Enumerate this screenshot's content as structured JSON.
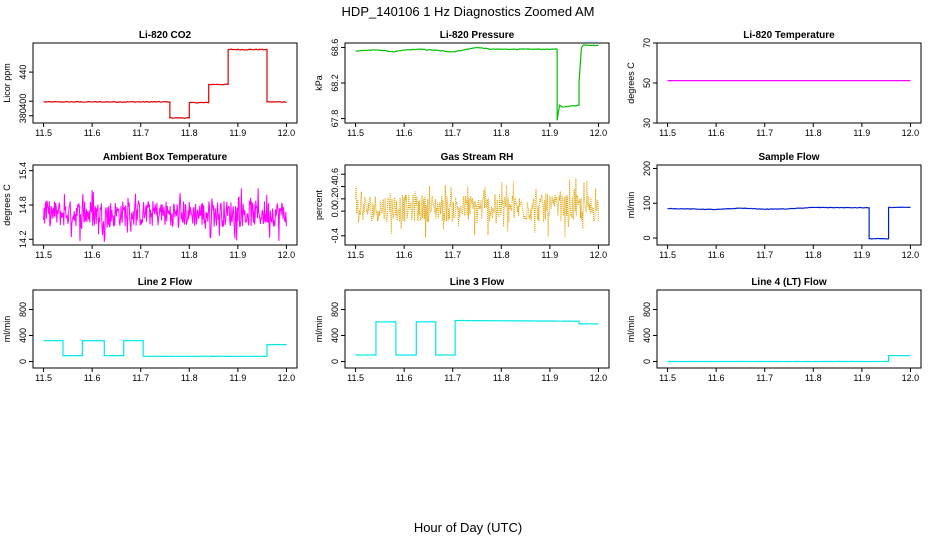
{
  "figure": {
    "title": "HDP_140106  1 Hz Diagnostics Zoomed AM",
    "xlabel": "Hour of Day (UTC)"
  },
  "chart_data": [
    {
      "type": "line",
      "title": "Li-820 CO2",
      "ylabel": "Licor ppm",
      "color": "#e00000",
      "xlim": [
        11.5,
        12.0
      ],
      "xticks": [
        "11.5",
        "11.6",
        "11.7",
        "11.8",
        "11.9",
        "12.0"
      ],
      "ylim": [
        370,
        480
      ],
      "yticks": [
        "380",
        "400",
        "440"
      ],
      "noise": 1.2,
      "series": [
        {
          "x": [
            11.5,
            11.76,
            11.76,
            11.8,
            11.8,
            11.84,
            11.84,
            11.88,
            11.88,
            11.96,
            11.96,
            12.0
          ],
          "y": [
            399,
            399,
            377,
            377,
            398,
            398,
            423,
            423,
            471,
            471,
            399,
            399
          ]
        }
      ]
    },
    {
      "type": "line",
      "title": "Li-820 Pressure",
      "ylabel": "kPa",
      "color": "#00c000",
      "xlim": [
        11.5,
        12.0
      ],
      "xticks": [
        "11.5",
        "11.6",
        "11.7",
        "11.8",
        "11.9",
        "12.0"
      ],
      "ylim": [
        67.75,
        68.65
      ],
      "yticks": [
        "67.8",
        "68.2",
        "68.6"
      ],
      "noise": 0.008,
      "series": [
        {
          "x": [
            11.5,
            11.53,
            11.55,
            11.58,
            11.6,
            11.63,
            11.66,
            11.7,
            11.72,
            11.75,
            11.78,
            11.82,
            11.86,
            11.9,
            11.915,
            11.915,
            11.92,
            11.925,
            11.96,
            11.96,
            11.965,
            11.97,
            12.0
          ],
          "y": [
            68.56,
            68.57,
            68.57,
            68.55,
            68.57,
            68.58,
            68.57,
            68.55,
            68.57,
            68.6,
            68.58,
            68.58,
            68.58,
            68.58,
            68.58,
            67.78,
            67.95,
            67.93,
            67.95,
            68.2,
            68.6,
            68.63,
            68.62
          ]
        }
      ]
    },
    {
      "type": "line",
      "title": "Li-820 Temperature",
      "ylabel": "degrees C",
      "color": "#ff00ff",
      "xlim": [
        11.5,
        12.0
      ],
      "xticks": [
        "11.5",
        "11.6",
        "11.7",
        "11.8",
        "11.9",
        "12.0"
      ],
      "ylim": [
        30,
        70
      ],
      "yticks": [
        "30",
        "50",
        "70"
      ],
      "noise": 0,
      "series": [
        {
          "x": [
            11.5,
            12.0
          ],
          "y": [
            51.2,
            51.2
          ]
        }
      ]
    },
    {
      "type": "line",
      "title": "Ambient Box Temperature",
      "ylabel": "degrees C",
      "color": "#ff00ff",
      "xlim": [
        11.5,
        12.0
      ],
      "xticks": [
        "11.5",
        "11.6",
        "11.7",
        "11.8",
        "11.9",
        "12.0"
      ],
      "ylim": [
        14.1,
        15.5
      ],
      "yticks": [
        "14.2",
        "14.8",
        "15.4"
      ],
      "noise": 0.33,
      "noise_type": "dense",
      "series": [
        {
          "x": [
            11.5,
            12.0
          ],
          "y": [
            14.65,
            14.65
          ]
        }
      ]
    },
    {
      "type": "line",
      "title": "Gas Stream RH",
      "ylabel": "percent",
      "color": "#e0a000",
      "xlim": [
        11.5,
        12.0
      ],
      "xticks": [
        "11.5",
        "11.6",
        "11.7",
        "11.8",
        "11.9",
        "12.0"
      ],
      "ylim": [
        -0.55,
        0.75
      ],
      "yticks": [
        "-0.4",
        "0.0",
        "0.2",
        "0.4",
        "0.6"
      ],
      "noise": 0.32,
      "noise_type": "dense",
      "dotted": true,
      "series": [
        {
          "x": [
            11.5,
            12.0
          ],
          "y": [
            0.05,
            0.05
          ]
        }
      ]
    },
    {
      "type": "line",
      "title": "Sample Flow",
      "ylabel": "ml/min",
      "color": "#0020d0",
      "xlim": [
        11.5,
        12.0
      ],
      "xticks": [
        "11.5",
        "11.6",
        "11.7",
        "11.8",
        "11.9",
        "12.0"
      ],
      "ylim": [
        -20,
        210
      ],
      "yticks": [
        "0",
        "100",
        "200"
      ],
      "noise": 1.5,
      "series": [
        {
          "x": [
            11.5,
            11.6,
            11.65,
            11.7,
            11.75,
            11.8,
            11.915,
            11.915,
            11.955,
            11.955,
            12.0
          ],
          "y": [
            85,
            82,
            86,
            83,
            84,
            88,
            87,
            -2,
            -2,
            88,
            88
          ]
        }
      ]
    },
    {
      "type": "line",
      "title": "Line 2 Flow",
      "ylabel": "ml/min",
      "color": "#00e8e8",
      "xlim": [
        11.5,
        12.0
      ],
      "xticks": [
        "11.5",
        "11.6",
        "11.7",
        "11.8",
        "11.9",
        "12.0"
      ],
      "ylim": [
        -100,
        1100
      ],
      "yticks": [
        "0",
        "400",
        "800"
      ],
      "noise": 4,
      "series": [
        {
          "x": [
            11.5,
            11.54,
            11.54,
            11.58,
            11.58,
            11.625,
            11.625,
            11.665,
            11.665,
            11.705,
            11.705,
            11.96,
            11.96,
            12.0
          ],
          "y": [
            320,
            320,
            90,
            90,
            320,
            320,
            90,
            90,
            320,
            320,
            80,
            80,
            260,
            260
          ]
        }
      ]
    },
    {
      "type": "line",
      "title": "Line 3 Flow",
      "ylabel": "ml/min",
      "color": "#00e8e8",
      "xlim": [
        11.5,
        12.0
      ],
      "xticks": [
        "11.5",
        "11.6",
        "11.7",
        "11.8",
        "11.9",
        "12.0"
      ],
      "ylim": [
        -100,
        1100
      ],
      "yticks": [
        "0",
        "400",
        "800"
      ],
      "noise": 4,
      "series": [
        {
          "x": [
            11.5,
            11.542,
            11.542,
            11.583,
            11.583,
            11.625,
            11.625,
            11.665,
            11.665,
            11.705,
            11.705,
            11.96,
            11.96,
            12.0
          ],
          "y": [
            100,
            100,
            610,
            610,
            100,
            100,
            610,
            610,
            100,
            100,
            630,
            620,
            580,
            580
          ]
        }
      ]
    },
    {
      "type": "line",
      "title": "Line 4 (LT) Flow",
      "ylabel": "ml/min",
      "color": "#00e8e8",
      "xlim": [
        11.5,
        12.0
      ],
      "xticks": [
        "11.5",
        "11.6",
        "11.7",
        "11.8",
        "11.9",
        "12.0"
      ],
      "ylim": [
        -100,
        1100
      ],
      "yticks": [
        "0",
        "400",
        "800"
      ],
      "noise": 3,
      "series": [
        {
          "x": [
            11.5,
            11.955,
            11.955,
            12.0
          ],
          "y": [
            0,
            0,
            90,
            90
          ]
        }
      ]
    }
  ]
}
